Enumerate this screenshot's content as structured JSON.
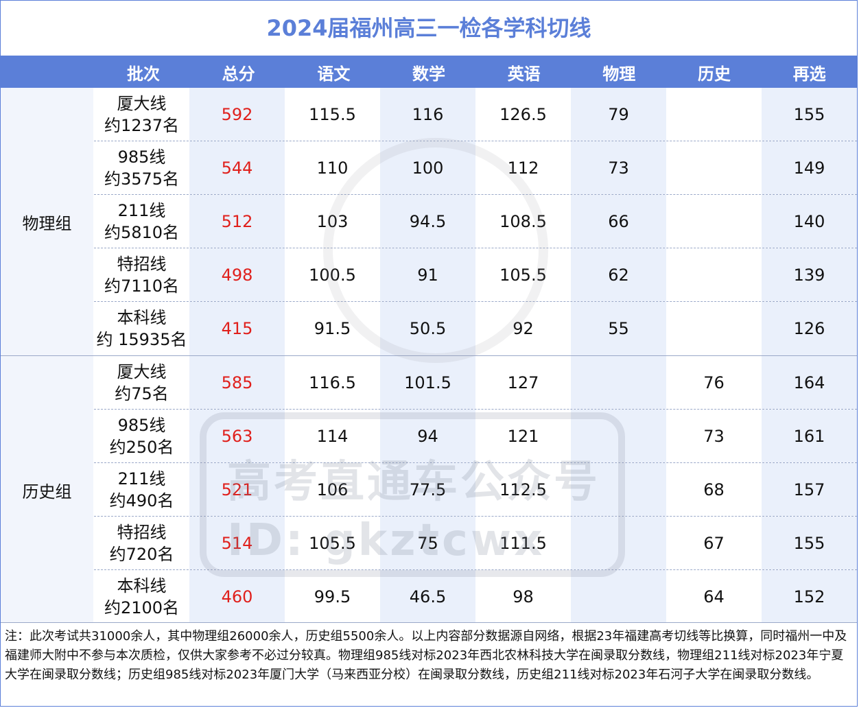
{
  "title": "2024届福州高三一检各学科切线",
  "headers": [
    "",
    "批次",
    "总分",
    "语文",
    "数学",
    "英语",
    "物理",
    "历史",
    "再选"
  ],
  "groups": [
    {
      "label": "物理组",
      "rows": [
        {
          "line1": "厦大线",
          "line2": "约1237名",
          "total": "592",
          "chinese": "115.5",
          "math": "116",
          "english": "126.5",
          "physics": "79",
          "history": "",
          "elective": "155"
        },
        {
          "line1": "985线",
          "line2": "约3575名",
          "total": "544",
          "chinese": "110",
          "math": "100",
          "english": "112",
          "physics": "73",
          "history": "",
          "elective": "149"
        },
        {
          "line1": "211线",
          "line2": "约5810名",
          "total": "512",
          "chinese": "103",
          "math": "94.5",
          "english": "108.5",
          "physics": "66",
          "history": "",
          "elective": "140"
        },
        {
          "line1": "特招线",
          "line2": "约7110名",
          "total": "498",
          "chinese": "100.5",
          "math": "91",
          "english": "105.5",
          "physics": "62",
          "history": "",
          "elective": "139"
        },
        {
          "line1": "本科线",
          "line2": "约 15935名",
          "total": "415",
          "chinese": "91.5",
          "math": "50.5",
          "english": "92",
          "physics": "55",
          "history": "",
          "elective": "126"
        }
      ]
    },
    {
      "label": "历史组",
      "rows": [
        {
          "line1": "厦大线",
          "line2": "约75名",
          "total": "585",
          "chinese": "116.5",
          "math": "101.5",
          "english": "127",
          "physics": "",
          "history": "76",
          "elective": "164"
        },
        {
          "line1": "985线",
          "line2": "约250名",
          "total": "563",
          "chinese": "114",
          "math": "94",
          "english": "121",
          "physics": "",
          "history": "73",
          "elective": "161"
        },
        {
          "line1": "211线",
          "line2": "约490名",
          "total": "521",
          "chinese": "106",
          "math": "77.5",
          "english": "112.5",
          "physics": "",
          "history": "68",
          "elective": "157"
        },
        {
          "line1": "特招线",
          "line2": "约720名",
          "total": "514",
          "chinese": "105.5",
          "math": "75",
          "english": "111.5",
          "physics": "",
          "history": "67",
          "elective": "155"
        },
        {
          "line1": "本科线",
          "line2": "约2100名",
          "total": "460",
          "chinese": "99.5",
          "math": "46.5",
          "english": "98",
          "physics": "",
          "history": "64",
          "elective": "152"
        }
      ]
    }
  ],
  "note": "注：此次考试共31000余人，其中物理组26000余人，历史组5500余人。以上内容部分数据源自网络，根据23年福建高考切线等比换算，同时福州一中及福建师大附中不参与本次质检，仅供大家参考不必过分较真。物理组985线对标2023年西北农林科技大学在闽录取分数线，物理组211线对标2023年宁夏大学在闽录取分数线；历史组985线对标2023年厦门大学（马来西亚分校）在闽录取分数线，历史组211线对标2023年石河子大学在闽录取分数线。",
  "watermark": {
    "line1": "高考直通车公众号",
    "line2": "ID: gkztcwx"
  },
  "colors": {
    "accent": "#5b7fd8",
    "total_text": "#e0201c",
    "shade": "#eaf0fb"
  }
}
